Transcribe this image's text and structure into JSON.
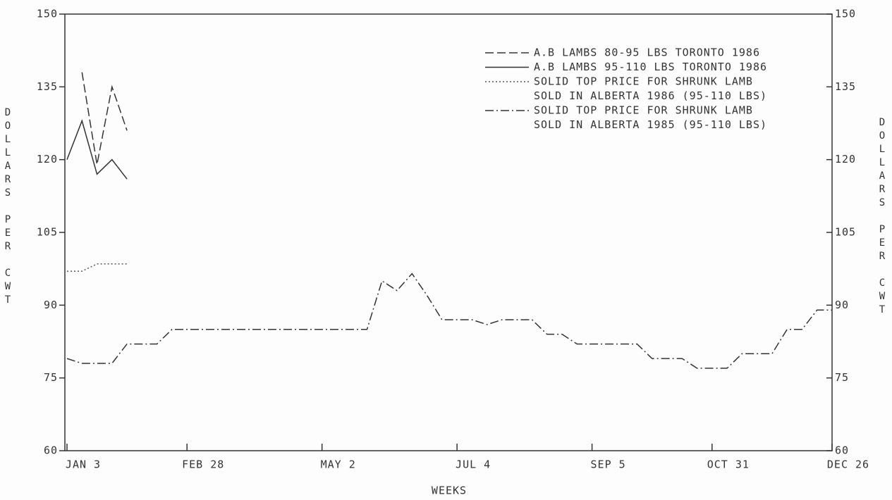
{
  "chart_data": {
    "type": "line",
    "xlabel": "WEEKS",
    "ylabel": "DOLLARS PER CWT",
    "y2label": "DOLLARS PER CWT",
    "categories": [
      "JAN 3",
      null,
      null,
      null,
      null,
      null,
      null,
      null,
      "FEB 28",
      null,
      null,
      null,
      null,
      null,
      null,
      null,
      null,
      "MAY 2",
      null,
      null,
      null,
      null,
      null,
      null,
      null,
      null,
      "JUL 4",
      null,
      null,
      null,
      null,
      null,
      null,
      null,
      null,
      "SEP 5",
      null,
      null,
      null,
      null,
      null,
      null,
      null,
      "OCT 31",
      null,
      null,
      null,
      null,
      null,
      null,
      null,
      "DEC 26"
    ],
    "ylim": [
      60,
      150
    ],
    "yticks": [
      60,
      75,
      90,
      105,
      120,
      135,
      150
    ],
    "y2lim": [
      60,
      150
    ],
    "y2ticks": [
      60,
      75,
      90,
      105,
      120,
      135,
      150
    ],
    "legend": "upper right",
    "series": [
      {
        "name": "A.B LAMBS 80-95 LBS TORONTO 1986",
        "color": "#333333",
        "style": "dashed",
        "values": [
          null,
          138,
          119,
          135,
          126,
          null,
          null,
          null,
          null,
          null,
          null,
          null,
          null,
          null,
          null,
          null,
          null,
          null,
          null,
          null,
          null,
          null,
          null,
          null,
          null,
          null,
          null,
          null,
          null,
          null,
          null,
          null,
          null,
          null,
          null,
          null,
          null,
          null,
          null,
          null,
          null,
          null,
          null,
          null,
          null,
          null,
          null,
          null,
          null,
          null,
          null,
          null
        ]
      },
      {
        "name": "A.B LAMBS 95-110 LBS TORONTO 1986",
        "color": "#333333",
        "style": "solid",
        "values": [
          120,
          128,
          117,
          120,
          116,
          null,
          null,
          null,
          null,
          null,
          null,
          null,
          null,
          null,
          null,
          null,
          null,
          null,
          null,
          null,
          null,
          null,
          null,
          null,
          null,
          null,
          null,
          null,
          null,
          null,
          null,
          null,
          null,
          null,
          null,
          null,
          null,
          null,
          null,
          null,
          null,
          null,
          null,
          null,
          null,
          null,
          null,
          null,
          null,
          null,
          null,
          null
        ]
      },
      {
        "name": [
          "SOLID TOP PRICE FOR SHRUNK LAMB",
          "SOLD IN ALBERTA 1986 (95-110 LBS)"
        ],
        "color": "#555555",
        "style": "dotted",
        "values": [
          97,
          97,
          98.5,
          98.5,
          98.5,
          null,
          null,
          null,
          null,
          null,
          null,
          null,
          null,
          null,
          null,
          null,
          null,
          null,
          null,
          null,
          null,
          null,
          null,
          null,
          null,
          null,
          null,
          null,
          null,
          null,
          null,
          null,
          null,
          null,
          null,
          null,
          null,
          null,
          null,
          null,
          null,
          null,
          null,
          null,
          null,
          null,
          null,
          null,
          null,
          null,
          null,
          null
        ]
      },
      {
        "name": [
          "SOLID TOP PRICE FOR SHRUNK LAMB",
          "SOLD IN ALBERTA 1985 (95-110 LBS)"
        ],
        "color": "#333333",
        "style": "dashdot",
        "values": [
          79,
          78,
          78,
          78,
          82,
          82,
          82,
          85,
          85,
          85,
          85,
          85,
          85,
          85,
          85,
          85,
          85,
          85,
          85,
          85,
          85,
          95,
          93,
          96.5,
          92,
          87,
          87,
          87,
          86,
          87,
          87,
          87,
          84,
          84,
          82,
          82,
          82,
          82,
          82,
          79,
          79,
          79,
          77,
          77,
          77,
          80,
          80,
          80,
          85,
          85,
          89,
          89
        ]
      }
    ]
  }
}
